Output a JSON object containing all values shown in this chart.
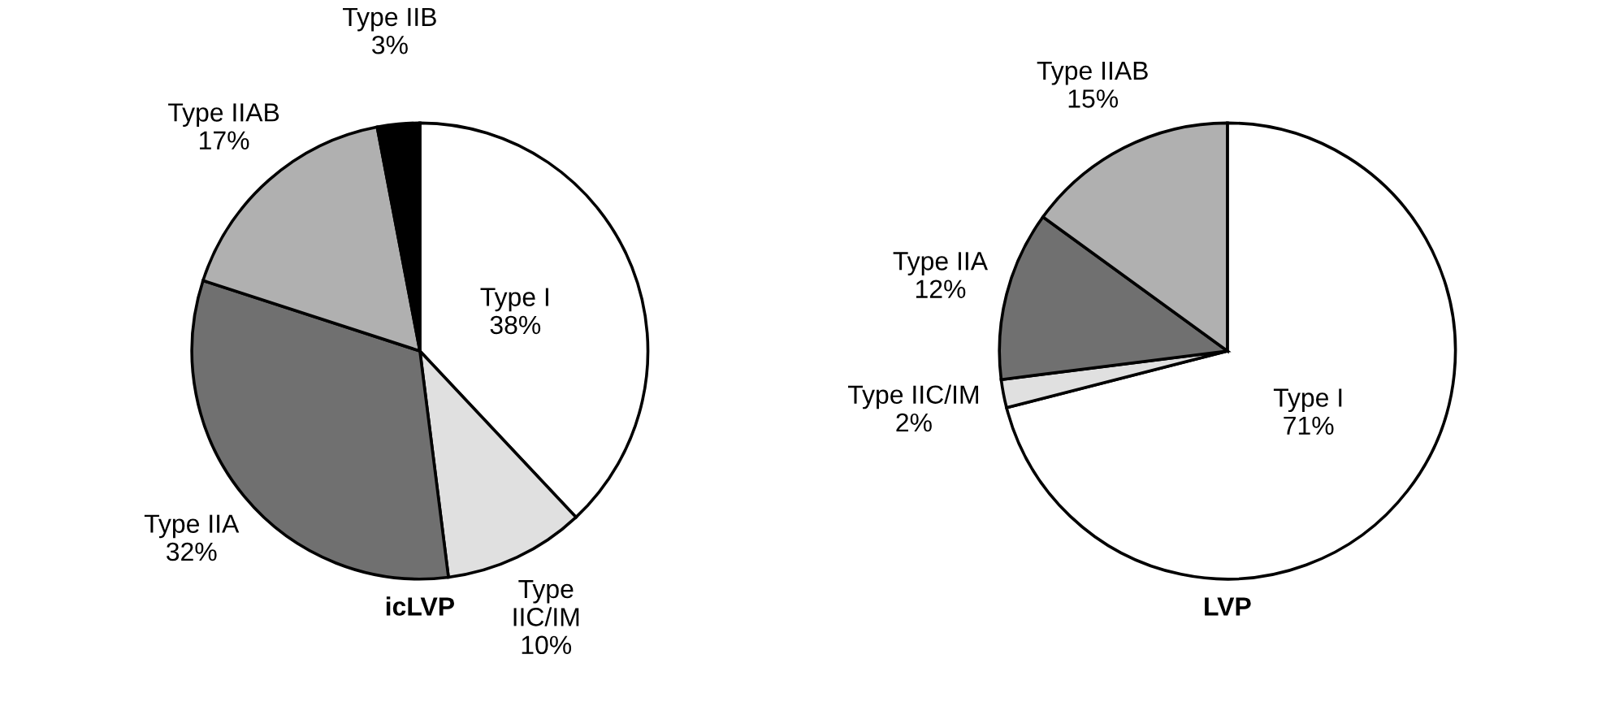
{
  "chart_data": [
    {
      "type": "pie",
      "title": "icLVP",
      "categories": [
        "Type I",
        "Type\nIIC/IM",
        "Type IIA",
        "Type IIAB",
        "Type IIB"
      ],
      "values": [
        38,
        10,
        32,
        17,
        3
      ],
      "value_labels": [
        "38%",
        "10%",
        "32%",
        "17%",
        "3%"
      ],
      "colors": [
        "#ffffff",
        "#e0e0e0",
        "#707070",
        "#b0b0b0",
        "#000000"
      ],
      "legend": false
    },
    {
      "type": "pie",
      "title": "LVP",
      "categories": [
        "Type I",
        "Type IIC/IM",
        "Type IIA",
        "Type IIAB"
      ],
      "values": [
        71,
        2,
        12,
        15
      ],
      "value_labels": [
        "71%",
        "2%",
        "12%",
        "15%"
      ],
      "colors": [
        "#ffffff",
        "#e0e0e0",
        "#707070",
        "#b0b0b0"
      ],
      "legend": false
    }
  ]
}
